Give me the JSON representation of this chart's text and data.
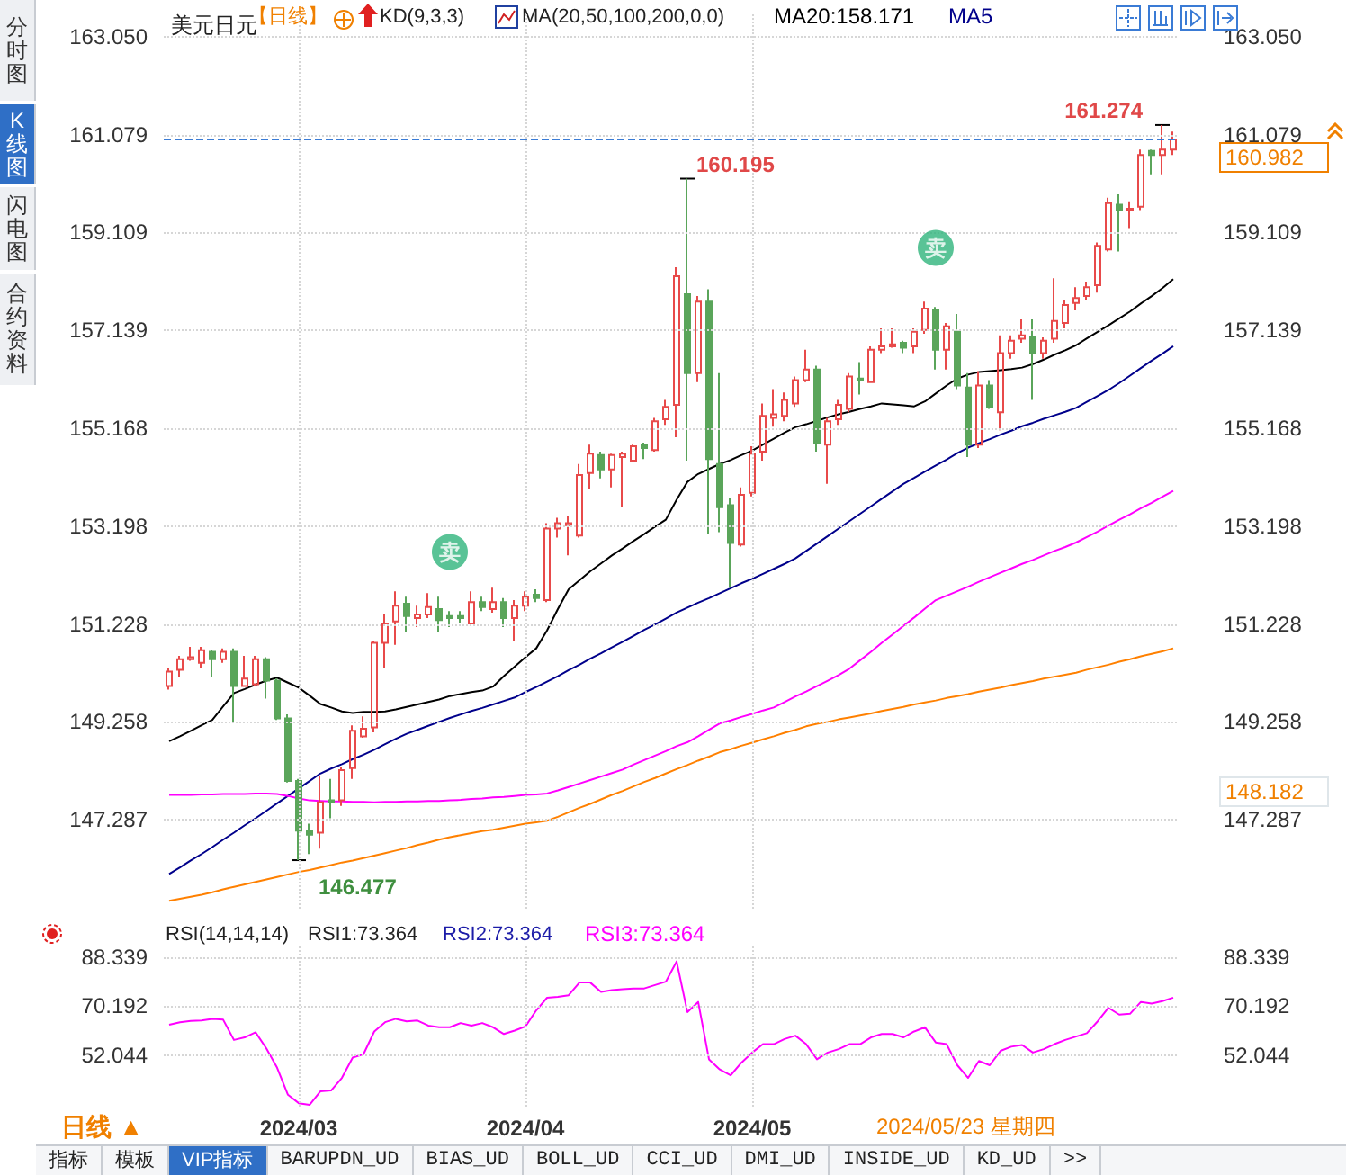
{
  "chart_data": [
    {
      "type": "candlestick",
      "title": "美元日元",
      "categories": [
        null,
        null,
        null,
        null,
        null,
        null,
        null,
        null,
        null,
        null,
        null,
        null,
        "2024/03",
        null,
        null,
        null,
        null,
        null,
        null,
        null,
        null,
        null,
        null,
        null,
        null,
        null,
        null,
        null,
        null,
        null,
        null,
        null,
        null,
        "2024/04",
        null,
        null,
        null,
        null,
        null,
        null,
        null,
        null,
        null,
        null,
        null,
        null,
        null,
        null,
        null,
        null,
        null,
        null,
        null,
        null,
        "2024/05",
        null,
        null,
        null,
        null,
        null,
        null,
        null,
        null,
        null,
        null,
        null,
        null,
        null,
        null,
        null,
        null,
        null,
        null,
        null,
        null,
        null,
        null,
        null,
        null,
        null,
        null,
        null,
        null,
        null,
        null,
        null,
        null,
        null,
        null,
        null,
        null,
        null,
        null,
        null
      ],
      "ohlc": [
        [
          149.98,
          150.34,
          149.91,
          150.27
        ],
        [
          150.31,
          150.59,
          150.16,
          150.52
        ],
        [
          150.52,
          150.77,
          150.49,
          150.56
        ],
        [
          150.45,
          150.77,
          150.34,
          150.7
        ],
        [
          150.67,
          150.7,
          150.16,
          150.52
        ],
        [
          150.52,
          150.74,
          150.45,
          150.67
        ],
        [
          150.67,
          150.74,
          149.26,
          149.98
        ],
        [
          149.98,
          150.59,
          149.98,
          150.13
        ],
        [
          150.02,
          150.59,
          149.98,
          150.52
        ],
        [
          150.52,
          150.56,
          149.73,
          150.09
        ],
        [
          150.09,
          150.13,
          149.3,
          149.33
        ],
        [
          149.33,
          149.41,
          148.04,
          148.07
        ],
        [
          148.07,
          148.11,
          146.477,
          147.07
        ],
        [
          147.07,
          147.21,
          146.6,
          146.99
        ],
        [
          147.03,
          148.18,
          146.71,
          147.64
        ],
        [
          147.68,
          148.11,
          147.32,
          147.64
        ],
        [
          147.68,
          148.36,
          147.57,
          148.29
        ],
        [
          148.33,
          149.19,
          148.11,
          149.08
        ],
        [
          148.97,
          149.37,
          148.94,
          149.12
        ],
        [
          149.15,
          150.88,
          149.05,
          150.85
        ],
        [
          150.85,
          151.42,
          150.34,
          151.24
        ],
        [
          151.28,
          151.89,
          150.81,
          151.6
        ],
        [
          151.64,
          151.78,
          151.06,
          151.39
        ],
        [
          151.35,
          151.6,
          151.17,
          151.42
        ],
        [
          151.42,
          151.85,
          151.35,
          151.57
        ],
        [
          151.53,
          151.78,
          151.06,
          151.31
        ],
        [
          151.39,
          151.49,
          151.17,
          151.35
        ],
        [
          151.39,
          151.49,
          151.24,
          151.35
        ],
        [
          151.24,
          151.89,
          151.21,
          151.67
        ],
        [
          151.67,
          151.78,
          151.49,
          151.57
        ],
        [
          151.53,
          151.96,
          151.46,
          151.67
        ],
        [
          151.67,
          151.75,
          151.17,
          151.35
        ],
        [
          151.35,
          151.71,
          150.88,
          151.6
        ],
        [
          151.6,
          151.89,
          151.49,
          151.78
        ],
        [
          151.82,
          151.93,
          151.67,
          151.75
        ],
        [
          151.71,
          153.26,
          151.67,
          153.15
        ],
        [
          153.15,
          153.37,
          152.97,
          153.26
        ],
        [
          153.22,
          153.4,
          152.61,
          153.26
        ],
        [
          153.01,
          154.45,
          152.97,
          154.23
        ],
        [
          154.27,
          154.84,
          153.94,
          154.66
        ],
        [
          154.63,
          154.7,
          154.16,
          154.34
        ],
        [
          154.34,
          154.66,
          153.98,
          154.63
        ],
        [
          154.59,
          154.7,
          153.58,
          154.66
        ],
        [
          154.52,
          154.84,
          154.48,
          154.81
        ],
        [
          154.84,
          154.88,
          154.55,
          154.77
        ],
        [
          154.73,
          155.38,
          154.7,
          155.31
        ],
        [
          155.35,
          155.74,
          155.24,
          155.6
        ],
        [
          155.64,
          158.41,
          154.99,
          158.23
        ],
        [
          157.87,
          160.195,
          154.52,
          156.28
        ],
        [
          156.28,
          157.83,
          156.1,
          157.72
        ],
        [
          157.72,
          157.97,
          153.04,
          154.55
        ],
        [
          154.45,
          156.28,
          153.08,
          153.58
        ],
        [
          153.62,
          153.76,
          151.96,
          152.86
        ],
        [
          152.83,
          153.98,
          152.79,
          153.83
        ],
        [
          153.87,
          154.81,
          153.8,
          154.66
        ],
        [
          154.7,
          155.67,
          154.52,
          155.42
        ],
        [
          155.38,
          155.96,
          155.2,
          155.45
        ],
        [
          155.42,
          155.89,
          155.31,
          155.74
        ],
        [
          155.67,
          156.21,
          155.6,
          156.14
        ],
        [
          156.14,
          156.75,
          156.1,
          156.35
        ],
        [
          156.35,
          156.43,
          154.7,
          154.88
        ],
        [
          154.84,
          155.38,
          154.05,
          155.31
        ],
        [
          155.35,
          155.74,
          155.24,
          155.64
        ],
        [
          155.56,
          156.28,
          155.49,
          156.21
        ],
        [
          156.17,
          156.5,
          155.85,
          156.14
        ],
        [
          156.1,
          156.82,
          156.1,
          156.75
        ],
        [
          156.75,
          157.18,
          156.68,
          156.82
        ],
        [
          156.82,
          157.18,
          156.79,
          156.86
        ],
        [
          156.89,
          156.93,
          156.68,
          156.79
        ],
        [
          156.82,
          157.18,
          156.68,
          157.11
        ],
        [
          157.15,
          157.72,
          157.07,
          157.58
        ],
        [
          157.54,
          157.61,
          156.35,
          156.75
        ],
        [
          156.75,
          157.29,
          156.35,
          157.22
        ],
        [
          157.11,
          157.47,
          155.96,
          156.03
        ],
        [
          155.99,
          156.28,
          154.59,
          154.84
        ],
        [
          154.84,
          156.32,
          154.77,
          156.03
        ],
        [
          156.03,
          156.14,
          155.56,
          155.6
        ],
        [
          155.49,
          157.04,
          155.13,
          156.68
        ],
        [
          156.68,
          157.04,
          156.57,
          156.93
        ],
        [
          156.97,
          157.36,
          156.89,
          157.04
        ],
        [
          157,
          157.36,
          155.74,
          156.68
        ],
        [
          156.68,
          157,
          156.57,
          156.93
        ],
        [
          156.97,
          158.19,
          156.89,
          157.33
        ],
        [
          157.29,
          157.76,
          157.18,
          157.65
        ],
        [
          157.69,
          158.01,
          157.54,
          157.79
        ],
        [
          157.83,
          158.12,
          157.76,
          158.01
        ],
        [
          158.05,
          158.91,
          157.9,
          158.84
        ],
        [
          158.77,
          159.81,
          158.73,
          159.7
        ],
        [
          159.67,
          159.88,
          158.73,
          159.56
        ],
        [
          159.56,
          159.74,
          159.2,
          159.59
        ],
        [
          159.63,
          160.78,
          159.56,
          160.67
        ],
        [
          160.75,
          160.78,
          160.28,
          160.67
        ],
        [
          160.67,
          161.274,
          160.28,
          160.78
        ],
        [
          160.78,
          161.14,
          160.67,
          160.982
        ]
      ],
      "colors": [
        "#e84a4a",
        "#e84a4a",
        "#e84a4a",
        "#e84a4a",
        "#5aa55a",
        "#e84a4a",
        "#5aa55a",
        "#e84a4a",
        "#e84a4a",
        "#5aa55a",
        "#5aa55a",
        "#5aa55a",
        "#5aa55a",
        "#5aa55a",
        "#e84a4a",
        "#5aa55a",
        "#e84a4a",
        "#e84a4a",
        "#e84a4a",
        "#e84a4a",
        "#e84a4a",
        "#e84a4a",
        "#5aa55a",
        "#e84a4a",
        "#e84a4a",
        "#5aa55a",
        "#5aa55a",
        "#5aa55a",
        "#e84a4a",
        "#5aa55a",
        "#e84a4a",
        "#5aa55a",
        "#e84a4a",
        "#e84a4a",
        "#5aa55a",
        "#e84a4a",
        "#e84a4a",
        "#e84a4a",
        "#e84a4a",
        "#e84a4a",
        "#5aa55a",
        "#e84a4a",
        "#e84a4a",
        "#e84a4a",
        "#5aa55a",
        "#e84a4a",
        "#e84a4a",
        "#e84a4a",
        "#5aa55a",
        "#e84a4a",
        "#5aa55a",
        "#5aa55a",
        "#5aa55a",
        "#e84a4a",
        "#e84a4a",
        "#e84a4a",
        "#e84a4a",
        "#e84a4a",
        "#e84a4a",
        "#e84a4a",
        "#5aa55a",
        "#e84a4a",
        "#e84a4a",
        "#e84a4a",
        "#5aa55a",
        "#e84a4a",
        "#e84a4a",
        "#e84a4a",
        "#5aa55a",
        "#e84a4a",
        "#e84a4a",
        "#5aa55a",
        "#e84a4a",
        "#5aa55a",
        "#5aa55a",
        "#e84a4a",
        "#5aa55a",
        "#e84a4a",
        "#e84a4a",
        "#e84a4a",
        "#5aa55a",
        "#e84a4a",
        "#e84a4a",
        "#e84a4a",
        "#e84a4a",
        "#e84a4a",
        "#e84a4a",
        "#e84a4a",
        "#5aa55a",
        "#e84a4a",
        "#e84a4a",
        "#5aa55a",
        "#e84a4a",
        "#e84a4a"
      ],
      "value_labels": [
        null,
        null,
        null,
        null,
        null,
        null,
        null,
        null,
        null,
        null,
        null,
        null,
        "146.477",
        null,
        null,
        null,
        null,
        null,
        null,
        null,
        null,
        null,
        null,
        null,
        null,
        null,
        null,
        null,
        null,
        null,
        null,
        null,
        null,
        null,
        null,
        null,
        null,
        null,
        null,
        null,
        null,
        null,
        null,
        null,
        null,
        null,
        null,
        null,
        "160.195",
        null,
        null,
        null,
        null,
        null,
        null,
        null,
        null,
        null,
        null,
        null,
        null,
        null,
        null,
        null,
        null,
        null,
        null,
        null,
        null,
        null,
        null,
        null,
        null,
        null,
        null,
        null,
        null,
        null,
        null,
        null,
        null,
        null,
        null,
        null,
        null,
        null,
        null,
        null,
        null,
        null,
        null,
        null,
        "161.274",
        null
      ],
      "series": [
        {
          "type": "line",
          "name": "MA20:158.171",
          "color": "#000000",
          "values": [
            148.87,
            148.97,
            149.08,
            149.19,
            149.3,
            149.57,
            149.84,
            149.92,
            150.01,
            150.09,
            150.15,
            150.05,
            149.95,
            149.79,
            149.62,
            149.55,
            149.47,
            149.44,
            149.46,
            149.46,
            149.47,
            149.51,
            149.56,
            149.61,
            149.66,
            149.71,
            149.78,
            149.82,
            149.86,
            149.89,
            149.97,
            150.18,
            150.37,
            150.56,
            150.74,
            151.1,
            151.53,
            151.93,
            152.11,
            152.29,
            152.45,
            152.61,
            152.75,
            152.9,
            153.04,
            153.19,
            153.33,
            153.73,
            154.09,
            154.25,
            154.35,
            154.45,
            154.53,
            154.63,
            154.72,
            154.84,
            154.96,
            155.08,
            155.19,
            155.25,
            155.32,
            155.39,
            155.45,
            155.5,
            155.56,
            155.61,
            155.67,
            155.65,
            155.63,
            155.61,
            155.71,
            155.87,
            156.03,
            156.17,
            156.25,
            156.3,
            156.32,
            156.34,
            156.36,
            156.39,
            156.46,
            156.55,
            156.65,
            156.74,
            156.84,
            156.98,
            157.11,
            157.24,
            157.38,
            157.52,
            157.68,
            157.83,
            157.99,
            158.171
          ]
        },
        {
          "type": "line",
          "name": "MA5",
          "color": "#00008b",
          "values": [
            146.2,
            146.33,
            146.47,
            146.6,
            146.74,
            146.89,
            147.03,
            147.18,
            147.32,
            147.47,
            147.62,
            147.77,
            147.92,
            148.07,
            148.22,
            148.32,
            148.41,
            148.51,
            148.6,
            148.7,
            148.81,
            148.92,
            149.02,
            149.1,
            149.18,
            149.26,
            149.34,
            149.41,
            149.48,
            149.54,
            149.61,
            149.68,
            149.75,
            149.86,
            149.96,
            150.07,
            150.18,
            150.3,
            150.41,
            150.53,
            150.64,
            150.76,
            150.87,
            150.99,
            151.11,
            151.22,
            151.34,
            151.46,
            151.56,
            151.66,
            151.75,
            151.85,
            151.95,
            152.05,
            152.14,
            152.24,
            152.34,
            152.44,
            152.55,
            152.7,
            152.85,
            153,
            153.15,
            153.3,
            153.45,
            153.6,
            153.75,
            153.9,
            154.05,
            154.17,
            154.3,
            154.42,
            154.54,
            154.67,
            154.78,
            154.87,
            154.95,
            155.04,
            155.12,
            155.21,
            155.28,
            155.36,
            155.43,
            155.5,
            155.58,
            155.7,
            155.82,
            155.94,
            156.08,
            156.23,
            156.38,
            156.53,
            156.67,
            156.82
          ]
        },
        {
          "type": "line",
          "color": "#ff00ff",
          "values": [
            147.79,
            147.79,
            147.79,
            147.8,
            147.8,
            147.81,
            147.81,
            147.81,
            147.82,
            147.82,
            147.81,
            147.77,
            147.72,
            147.68,
            147.67,
            147.66,
            147.66,
            147.65,
            147.65,
            147.64,
            147.65,
            147.65,
            147.66,
            147.66,
            147.67,
            147.67,
            147.68,
            147.69,
            147.71,
            147.72,
            147.74,
            147.75,
            147.77,
            147.79,
            147.8,
            147.82,
            147.88,
            147.95,
            148.02,
            148.09,
            148.16,
            148.23,
            148.3,
            148.4,
            148.49,
            148.58,
            148.67,
            148.77,
            148.85,
            148.97,
            149.1,
            149.23,
            149.29,
            149.36,
            149.42,
            149.49,
            149.55,
            149.66,
            149.77,
            149.87,
            149.98,
            150.09,
            150.2,
            150.33,
            150.5,
            150.67,
            150.85,
            151.02,
            151.19,
            151.36,
            151.54,
            151.71,
            151.8,
            151.89,
            151.98,
            152.08,
            152.17,
            152.26,
            152.35,
            152.44,
            152.52,
            152.61,
            152.7,
            152.78,
            152.87,
            152.98,
            153.09,
            153.21,
            153.33,
            153.44,
            153.56,
            153.67,
            153.79,
            153.91
          ]
        },
        {
          "type": "line",
          "color": "#ff8000",
          "values": [
            145.66,
            145.7,
            145.74,
            145.78,
            145.83,
            145.89,
            145.94,
            145.99,
            146.04,
            146.09,
            146.14,
            146.19,
            146.24,
            146.28,
            146.33,
            146.38,
            146.43,
            146.47,
            146.52,
            146.57,
            146.62,
            146.67,
            146.72,
            146.78,
            146.83,
            146.89,
            146.94,
            146.98,
            147.02,
            147.06,
            147.09,
            147.13,
            147.17,
            147.21,
            147.24,
            147.27,
            147.35,
            147.44,
            147.53,
            147.61,
            147.7,
            147.79,
            147.87,
            147.96,
            148.05,
            148.13,
            148.22,
            148.31,
            148.39,
            148.48,
            148.56,
            148.65,
            148.71,
            148.78,
            148.84,
            148.91,
            148.97,
            149.04,
            149.1,
            149.17,
            149.22,
            149.26,
            149.31,
            149.35,
            149.39,
            149.43,
            149.48,
            149.52,
            149.56,
            149.61,
            149.65,
            149.69,
            149.74,
            149.78,
            149.82,
            149.87,
            149.91,
            149.95,
            150,
            150.04,
            150.08,
            150.13,
            150.17,
            150.21,
            150.25,
            150.31,
            150.36,
            150.41,
            150.47,
            150.52,
            150.58,
            150.63,
            150.68,
            150.74
          ]
        },
        {
          "type": "scatter",
          "color": "#2fb47c",
          "marker": "circle",
          "values": [
            null,
            null,
            null,
            null,
            null,
            null,
            null,
            null,
            null,
            null,
            null,
            null,
            null,
            null,
            null,
            null,
            null,
            null,
            null,
            null,
            null,
            null,
            null,
            null,
            null,
            null,
            152.68,
            null,
            null,
            null,
            null,
            null,
            null,
            null,
            null,
            null,
            null,
            null,
            null,
            null,
            null,
            null,
            null,
            null,
            null,
            null,
            null,
            null,
            null,
            null,
            null,
            null,
            null,
            null,
            null,
            null,
            null,
            null,
            null,
            null,
            null,
            null,
            null,
            null,
            null,
            null,
            null,
            null,
            null,
            null,
            null,
            158.8,
            null,
            null,
            null,
            null,
            null,
            null,
            null,
            null,
            null,
            null,
            null,
            null,
            null,
            null,
            null,
            null,
            null,
            null,
            null,
            null,
            null,
            null
          ],
          "value_labels": [
            null,
            null,
            null,
            null,
            null,
            null,
            null,
            null,
            null,
            null,
            null,
            null,
            null,
            null,
            null,
            null,
            null,
            null,
            null,
            null,
            null,
            null,
            null,
            null,
            null,
            null,
            "卖",
            null,
            null,
            null,
            null,
            null,
            null,
            null,
            null,
            null,
            null,
            null,
            null,
            null,
            null,
            null,
            null,
            null,
            null,
            null,
            null,
            null,
            null,
            null,
            null,
            null,
            null,
            null,
            null,
            null,
            null,
            null,
            null,
            null,
            null,
            null,
            null,
            null,
            null,
            null,
            null,
            null,
            null,
            null,
            null,
            "卖",
            null,
            null,
            null,
            null,
            null,
            null,
            null,
            null,
            null,
            null,
            null,
            null,
            null,
            null,
            null,
            null,
            null,
            null,
            null,
            null,
            null,
            null
          ]
        }
      ],
      "ylim": [
        145.5,
        163.5
      ],
      "yticks": [
        {
          "value": 163.05,
          "label": "163.050"
        },
        {
          "value": 161.079,
          "label": "161.079"
        },
        {
          "value": 159.109,
          "label": "159.109"
        },
        {
          "value": 157.139,
          "label": "157.139"
        },
        {
          "value": 155.168,
          "label": "155.168"
        },
        {
          "value": 153.198,
          "label": "153.198"
        },
        {
          "value": 151.228,
          "label": "151.228"
        },
        {
          "value": 149.258,
          "label": "149.258"
        },
        {
          "value": 147.287,
          "label": "147.287"
        }
      ],
      "y2lim": [
        145.5,
        163.5
      ],
      "y2ticks": [
        {
          "value": 163.05,
          "label": "163.050"
        },
        {
          "value": 161.079,
          "label": "161.079"
        },
        {
          "value": 159.109,
          "label": "159.109"
        },
        {
          "value": 157.139,
          "label": "157.139"
        },
        {
          "value": 155.168,
          "label": "155.168"
        },
        {
          "value": 153.198,
          "label": "153.198"
        },
        {
          "value": 151.228,
          "label": "151.228"
        },
        {
          "value": 149.258,
          "label": "149.258"
        },
        {
          "value": 147.287,
          "label": "147.287"
        }
      ],
      "ref_lines": [
        {
          "axis": "y",
          "value": 160.982,
          "label": "160.982",
          "color": "#3a7bd5",
          "line_style": "dashed"
        }
      ],
      "annotations": [
        "【日线】",
        "KD(9,3,3)",
        "MA(20,50,100,200,0,0)",
        "148.182"
      ],
      "grid": true,
      "legend": "top",
      "marker": "none",
      "tick_labels": "y"
    },
    {
      "type": "line",
      "categories": [
        null,
        null,
        null,
        null,
        null,
        null,
        null,
        null,
        null,
        null,
        null,
        null,
        "2024/03",
        null,
        null,
        null,
        null,
        null,
        null,
        null,
        null,
        null,
        null,
        null,
        null,
        null,
        null,
        null,
        null,
        null,
        null,
        null,
        null,
        "2024/04",
        null,
        null,
        null,
        null,
        null,
        null,
        null,
        null,
        null,
        null,
        null,
        null,
        null,
        null,
        null,
        null,
        null,
        null,
        null,
        null,
        "2024/05",
        null,
        null,
        null,
        null,
        null,
        null,
        null,
        null,
        null,
        null,
        null,
        null,
        null,
        null,
        null,
        null,
        null,
        null,
        null,
        null,
        null,
        null,
        null,
        null,
        null,
        null,
        null,
        null,
        null,
        null,
        null,
        null,
        null,
        null,
        null,
        null,
        null,
        null,
        null
      ],
      "series": [
        {
          "name": "RSI3:73.364",
          "color": "#ff00ff",
          "values": [
            63.34,
            64.28,
            64.75,
            64.9,
            65.53,
            65.21,
            57.71,
            58.65,
            60.53,
            54.59,
            47.4,
            37.4,
            34.28,
            33.65,
            38.65,
            38.96,
            43.65,
            51.15,
            52.4,
            60.84,
            64.28,
            65.53,
            64.59,
            64.9,
            63.03,
            62.4,
            62.4,
            63.96,
            63.03,
            63.96,
            62.4,
            59.9,
            61.15,
            62.71,
            68.65,
            73.34,
            73.65,
            74.28,
            78.96,
            78.96,
            75.53,
            76.15,
            76.46,
            76.78,
            76.78,
            78.03,
            79.28,
            86.78,
            68.03,
            71.78,
            50.53,
            46.78,
            44.59,
            49.28,
            53.03,
            56.15,
            56.15,
            58.03,
            59.28,
            56.15,
            50.53,
            53.03,
            54.28,
            56.15,
            56.15,
            58.65,
            59.9,
            59.9,
            58.65,
            60.84,
            62.4,
            56.78,
            56.15,
            48.34,
            43.65,
            49.9,
            48.34,
            53.65,
            55.21,
            55.84,
            53.03,
            54.28,
            56.15,
            57.71,
            58.96,
            60.21,
            64.59,
            69.59,
            67.09,
            67.4,
            71.78,
            71.15,
            72.09,
            73.364
          ]
        }
      ],
      "ylim": [
        33,
        93
      ],
      "yticks": [
        88.339,
        70.192,
        52.044
      ],
      "y2lim": [
        33,
        93
      ],
      "y2ticks": [
        88.339,
        70.192,
        52.044
      ],
      "annotations": [
        "RSI(14,14,14)",
        "RSI1:73.364",
        "RSI2:73.364"
      ],
      "grid": true,
      "legend": "top",
      "marker": "none"
    },
    {
      "type": "other",
      "annotations": [
        "分时图",
        "K线图",
        "闪电图",
        "合约资料",
        "日线 ▲",
        "2024/05/23 星期四",
        "指标",
        "模板",
        "VIP指标",
        "BARUPDN_UD",
        "BIAS_UD",
        "BOLL_UD",
        "CCI_UD",
        "DMI_UD",
        "INSIDE_UD",
        "KD_UD",
        ">>"
      ]
    }
  ]
}
